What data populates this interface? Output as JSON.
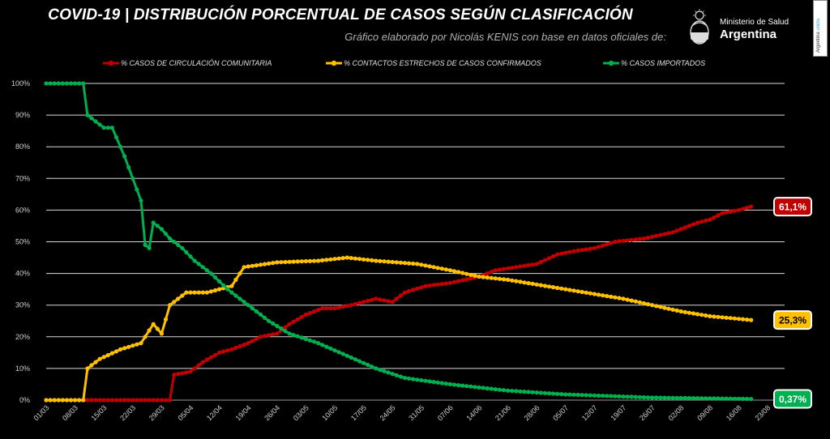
{
  "header": {
    "title": "COVID-19  |  DISTRIBUCIÓN PORCENTUAL DE CASOS SEGÚN CLASIFICACIÓN",
    "subtitle": "Gráfico elaborado por Nicolás KENIS con base en datos oficiales de:",
    "logo_ministry": "Ministerio de Salud",
    "logo_country": "Argentina",
    "side_badge_a": "Argentina ",
    "side_badge_b": "unida"
  },
  "chart_data": {
    "type": "line",
    "title": "COVID-19  |  DISTRIBUCIÓN PORCENTUAL DE CASOS SEGÚN CLASIFICACIÓN",
    "xlabel": "",
    "ylabel": "",
    "ylim": [
      0,
      100
    ],
    "yticks": [
      "0%",
      "10%",
      "20%",
      "30%",
      "40%",
      "50%",
      "60%",
      "70%",
      "80%",
      "90%",
      "100%"
    ],
    "x_tick_labels": [
      "01/03",
      "08/03",
      "15/03",
      "22/03",
      "29/03",
      "05/04",
      "12/04",
      "19/04",
      "26/04",
      "03/05",
      "10/05",
      "17/05",
      "24/05",
      "31/05",
      "07/06",
      "14/06",
      "21/06",
      "28/06",
      "05/07",
      "12/07",
      "19/07",
      "26/07",
      "02/08",
      "09/08",
      "16/08",
      "23/08"
    ],
    "x_start": "2020-03-01",
    "x_end": "2020-08-23",
    "grid": true,
    "legend_position": "top",
    "series": [
      {
        "name": "% CASOS DE CIRCULACIÓN COMUNITARIA",
        "color": "#c00000",
        "final_label": "61,1%",
        "points": [
          [
            "2020-03-01",
            0
          ],
          [
            "2020-03-31",
            0
          ],
          [
            "2020-04-01",
            8
          ],
          [
            "2020-04-05",
            9
          ],
          [
            "2020-04-08",
            12
          ],
          [
            "2020-04-12",
            15
          ],
          [
            "2020-04-15",
            16
          ],
          [
            "2020-04-19",
            18
          ],
          [
            "2020-04-22",
            20
          ],
          [
            "2020-04-26",
            21
          ],
          [
            "2020-04-29",
            24
          ],
          [
            "2020-05-03",
            27
          ],
          [
            "2020-05-07",
            29
          ],
          [
            "2020-05-10",
            29
          ],
          [
            "2020-05-14",
            30
          ],
          [
            "2020-05-20",
            32
          ],
          [
            "2020-05-24",
            31
          ],
          [
            "2020-05-27",
            34
          ],
          [
            "2020-06-01",
            36
          ],
          [
            "2020-06-07",
            37
          ],
          [
            "2020-06-14",
            39
          ],
          [
            "2020-06-18",
            41
          ],
          [
            "2020-06-28",
            43
          ],
          [
            "2020-07-03",
            46
          ],
          [
            "2020-07-07",
            47
          ],
          [
            "2020-07-12",
            48
          ],
          [
            "2020-07-17",
            50
          ],
          [
            "2020-07-24",
            51
          ],
          [
            "2020-07-31",
            53
          ],
          [
            "2020-08-06",
            56
          ],
          [
            "2020-08-09",
            57
          ],
          [
            "2020-08-12",
            59
          ],
          [
            "2020-08-16",
            60
          ],
          [
            "2020-08-19",
            61.1
          ]
        ]
      },
      {
        "name": "% CONTACTOS ESTRECHOS DE CASOS CONFIRMADOS",
        "color": "#ffc000",
        "final_label": "25,3%",
        "points": [
          [
            "2020-03-01",
            0
          ],
          [
            "2020-03-10",
            0
          ],
          [
            "2020-03-11",
            10
          ],
          [
            "2020-03-14",
            13
          ],
          [
            "2020-03-19",
            16
          ],
          [
            "2020-03-24",
            18
          ],
          [
            "2020-03-27",
            24
          ],
          [
            "2020-03-29",
            21
          ],
          [
            "2020-03-31",
            30
          ],
          [
            "2020-04-04",
            34
          ],
          [
            "2020-04-09",
            34
          ],
          [
            "2020-04-15",
            36
          ],
          [
            "2020-04-18",
            42
          ],
          [
            "2020-04-26",
            43.5
          ],
          [
            "2020-05-06",
            44
          ],
          [
            "2020-05-13",
            45
          ],
          [
            "2020-05-20",
            44
          ],
          [
            "2020-05-30",
            43
          ],
          [
            "2020-06-07",
            41
          ],
          [
            "2020-06-14",
            39
          ],
          [
            "2020-06-21",
            38
          ],
          [
            "2020-06-28",
            36.5
          ],
          [
            "2020-07-05",
            35
          ],
          [
            "2020-07-12",
            33.5
          ],
          [
            "2020-07-19",
            32
          ],
          [
            "2020-07-26",
            30
          ],
          [
            "2020-08-02",
            28
          ],
          [
            "2020-08-09",
            26.5
          ],
          [
            "2020-08-19",
            25.3
          ]
        ]
      },
      {
        "name": "% CASOS IMPORTADOS",
        "color": "#00b050",
        "final_label": "0,37%",
        "points": [
          [
            "2020-03-01",
            100
          ],
          [
            "2020-03-10",
            100
          ],
          [
            "2020-03-11",
            90
          ],
          [
            "2020-03-13",
            88
          ],
          [
            "2020-03-15",
            86
          ],
          [
            "2020-03-17",
            86
          ],
          [
            "2020-03-20",
            77
          ],
          [
            "2020-03-22",
            70
          ],
          [
            "2020-03-24",
            63
          ],
          [
            "2020-03-25",
            49
          ],
          [
            "2020-03-26",
            48
          ],
          [
            "2020-03-27",
            56
          ],
          [
            "2020-03-29",
            54
          ],
          [
            "2020-03-31",
            51
          ],
          [
            "2020-04-03",
            48
          ],
          [
            "2020-04-06",
            44
          ],
          [
            "2020-04-10",
            40
          ],
          [
            "2020-04-14",
            35
          ],
          [
            "2020-04-19",
            30
          ],
          [
            "2020-04-24",
            25
          ],
          [
            "2020-04-29",
            21
          ],
          [
            "2020-05-06",
            18
          ],
          [
            "2020-05-13",
            14
          ],
          [
            "2020-05-20",
            10
          ],
          [
            "2020-05-27",
            7
          ],
          [
            "2020-06-07",
            5
          ],
          [
            "2020-06-21",
            3
          ],
          [
            "2020-07-05",
            1.8
          ],
          [
            "2020-07-26",
            0.8
          ],
          [
            "2020-08-19",
            0.37
          ]
        ]
      }
    ]
  }
}
